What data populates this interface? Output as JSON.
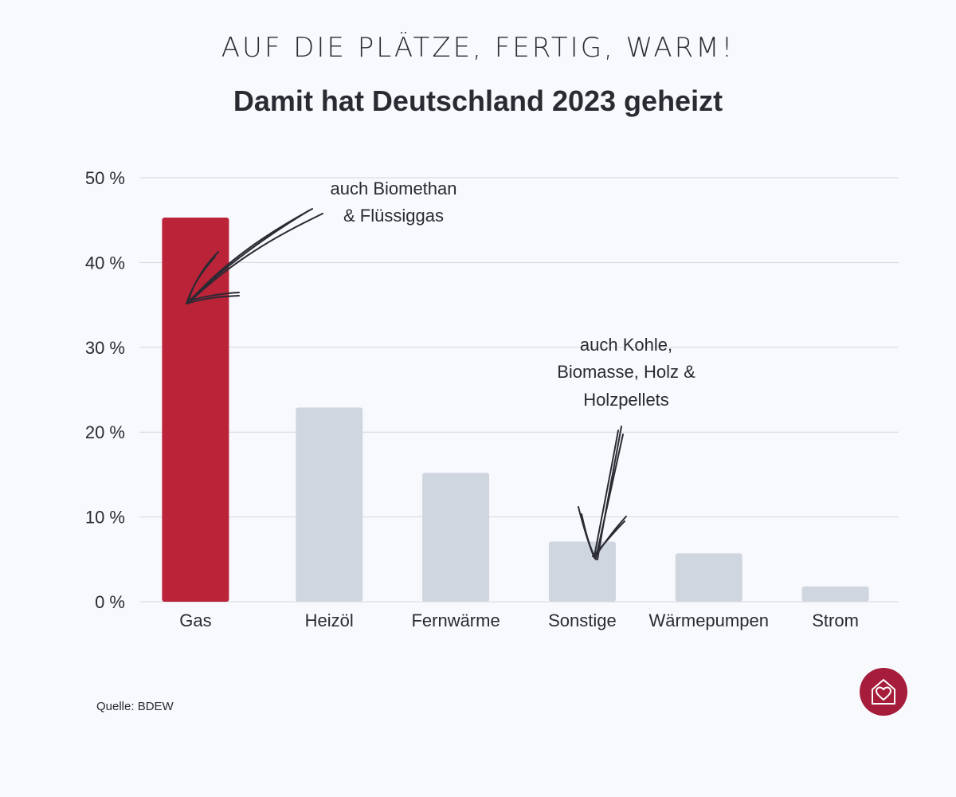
{
  "header": {
    "kicker": "AUF DIE PLÄTZE, FERTIG, WARM!",
    "title": "Damit hat Deutschland 2023 geheizt"
  },
  "colors": {
    "highlight": "#bb2338",
    "bar": "#d0d6e0",
    "grid": "#d3d7de",
    "logo": "#a51d3b"
  },
  "chart_data": {
    "type": "bar",
    "categories": [
      "Gas",
      "Heizöl",
      "Fernwärme",
      "Sonstige",
      "Wärmepumpen",
      "Strom"
    ],
    "values": [
      45.3,
      22.9,
      15.2,
      7.1,
      5.7,
      1.8
    ],
    "highlight_category": "Gas",
    "ylim": [
      0,
      50
    ],
    "yticks": [
      0,
      10,
      20,
      30,
      40,
      50
    ],
    "ytick_labels": [
      "0 %",
      "10 %",
      "20 %",
      "30 %",
      "40 %",
      "50 %"
    ],
    "grid": true,
    "annotations": [
      {
        "category": "Gas",
        "lines": [
          "auch Biomethan",
          "& Flüssiggas"
        ]
      },
      {
        "category": "Sonstige",
        "lines": [
          "auch Kohle,",
          "Biomasse, Holz &",
          "Holzpellets"
        ]
      }
    ]
  },
  "footer": {
    "source": "Quelle: BDEW",
    "logo_icon": "house-heart-icon"
  }
}
